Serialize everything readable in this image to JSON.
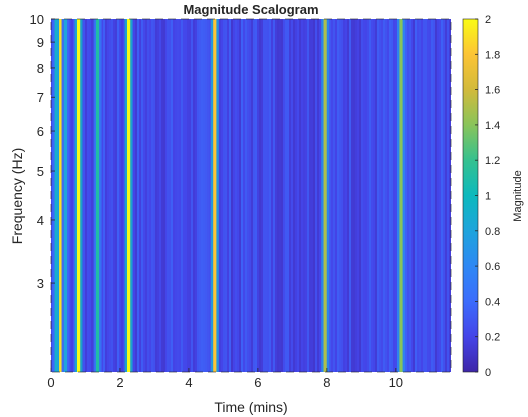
{
  "chart_data": {
    "type": "heatmap",
    "title": "Magnitude Scalogram",
    "xlabel": "Time (mins)",
    "ylabel": "Frequency (Hz)",
    "colorbar_label": "Magnitude",
    "xlim": [
      0,
      11.6
    ],
    "ylim": [
      2.0,
      10
    ],
    "yscale": "log",
    "clim": [
      0,
      2
    ],
    "colormap": "parula",
    "x_ticks": [
      0,
      2,
      4,
      6,
      8,
      10
    ],
    "x_tick_labels": [
      "0",
      "2",
      "4",
      "6",
      "8",
      "10"
    ],
    "y_ticks": [
      3,
      4,
      5,
      6,
      7,
      8,
      9,
      10
    ],
    "y_tick_labels": [
      "3",
      "4",
      "5",
      "6",
      "7",
      "8",
      "9",
      "10"
    ],
    "colorbar_ticks": [
      0,
      0.2,
      0.4,
      0.6,
      0.8,
      1,
      1.2,
      1.4,
      1.6,
      1.8,
      2
    ],
    "colorbar_tick_labels": [
      "0",
      "0.2",
      "0.4",
      "0.6",
      "0.8",
      "1",
      "1.2",
      "1.4",
      "1.6",
      "1.8",
      "2"
    ],
    "background_magnitude": 0.2,
    "events": [
      {
        "time": 0.15,
        "magnitude": 0.9
      },
      {
        "time": 0.28,
        "magnitude": 1.9
      },
      {
        "time": 0.42,
        "magnitude": 0.8
      },
      {
        "time": 0.8,
        "magnitude": 2.0
      },
      {
        "time": 1.35,
        "magnitude": 1.1
      },
      {
        "time": 2.25,
        "magnitude": 2.0
      },
      {
        "time": 4.75,
        "magnitude": 1.8
      },
      {
        "time": 7.95,
        "magnitude": 1.5
      },
      {
        "time": 10.15,
        "magnitude": 1.4
      }
    ]
  }
}
